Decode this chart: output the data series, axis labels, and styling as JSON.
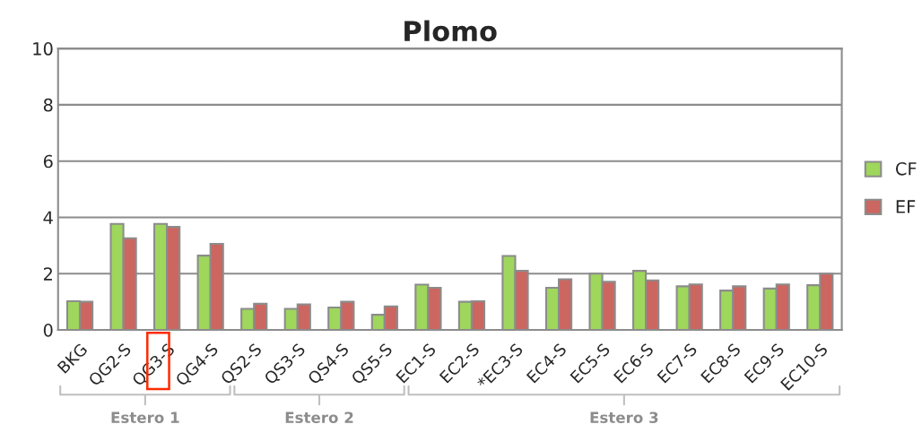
{
  "chart_data": {
    "type": "bar",
    "title": "Plomo",
    "categories": [
      "BKG",
      "QG2-S",
      "QG3-S",
      "QG4-S",
      "QS2-S",
      "QS3-S",
      "QS4-S",
      "QS5-S",
      "EC1-S",
      "EC2-S",
      "*EC3-S",
      "EC4-S",
      "EC5-S",
      "EC6-S",
      "EC7-S",
      "EC8-S",
      "EC9-S",
      "EC10-S"
    ],
    "series": [
      {
        "name": "CF",
        "color": "#9fd65c",
        "values": [
          1.02,
          3.77,
          3.77,
          2.64,
          0.75,
          0.75,
          0.8,
          0.54,
          1.61,
          1.0,
          2.63,
          1.5,
          2.0,
          2.1,
          1.55,
          1.4,
          1.47,
          1.59
        ]
      },
      {
        "name": "EF",
        "color": "#cc6660",
        "values": [
          1.0,
          3.26,
          3.66,
          3.06,
          0.93,
          0.91,
          1.0,
          0.84,
          1.5,
          1.02,
          2.1,
          1.8,
          1.71,
          1.76,
          1.62,
          1.55,
          1.62,
          2.0
        ]
      }
    ],
    "ylim": [
      0,
      10
    ],
    "yticks": [
      0,
      2,
      4,
      6,
      8,
      10
    ],
    "grid": "y",
    "legend": "right",
    "annotations": [
      "Estero 1",
      "Estero 2",
      "Estero 3"
    ]
  }
}
